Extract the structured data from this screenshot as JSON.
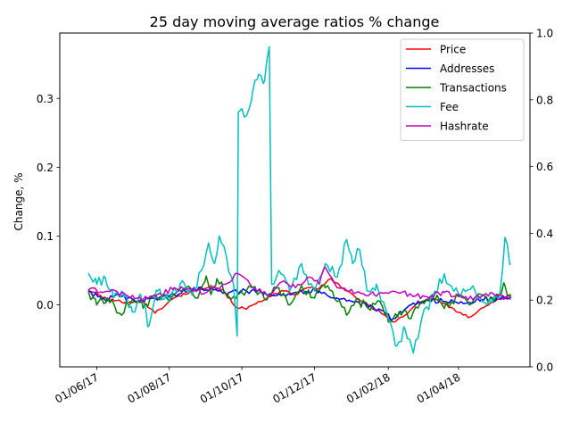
{
  "chart_data": {
    "type": "line",
    "title": "25 day moving average ratios % change",
    "xlabel": "",
    "ylabel": "Change, %",
    "x_range": [
      "2017-05-01",
      "2018-05-31"
    ],
    "ylim": [
      -0.09,
      0.395
    ],
    "y_ticks": [
      0.0,
      0.1,
      0.2,
      0.3
    ],
    "y_tick_labels": [
      "0.0",
      "0.1",
      "0.2",
      "0.3"
    ],
    "y2lim": [
      0.0,
      1.0
    ],
    "y2_ticks": [
      0.0,
      0.2,
      0.4,
      0.6,
      0.8,
      1.0
    ],
    "y2_tick_labels": [
      "0.0",
      "0.2",
      "0.4",
      "0.6",
      "0.8",
      "1.0"
    ],
    "x_ticks": [
      "2017-06-01",
      "2017-08-01",
      "2017-10-01",
      "2017-12-01",
      "2018-02-01",
      "2018-04-01"
    ],
    "x_tick_labels": [
      "01/06/17",
      "01/08/17",
      "01/10/17",
      "01/12/17",
      "01/02/18",
      "01/04/18"
    ],
    "grid": false,
    "legend_position": "top-right",
    "series": [
      {
        "name": "Price",
        "color": "#ff0000",
        "points": [
          [
            "2017-05-25",
            0.022
          ],
          [
            "2017-06-10",
            0.008
          ],
          [
            "2017-06-25",
            0.004
          ],
          [
            "2017-07-10",
            0.005
          ],
          [
            "2017-07-20",
            -0.012
          ],
          [
            "2017-08-05",
            0.01
          ],
          [
            "2017-08-20",
            0.02
          ],
          [
            "2017-09-05",
            0.028
          ],
          [
            "2017-09-15",
            0.022
          ],
          [
            "2017-09-25",
            -0.002
          ],
          [
            "2017-10-05",
            -0.006
          ],
          [
            "2017-10-15",
            0.005
          ],
          [
            "2017-10-25",
            0.012
          ],
          [
            "2017-11-05",
            0.02
          ],
          [
            "2017-11-15",
            0.015
          ],
          [
            "2017-11-25",
            0.025
          ],
          [
            "2017-12-05",
            0.024
          ],
          [
            "2017-12-15",
            0.038
          ],
          [
            "2017-12-25",
            0.024
          ],
          [
            "2018-01-05",
            0.01
          ],
          [
            "2018-01-15",
            0.0
          ],
          [
            "2018-01-25",
            -0.01
          ],
          [
            "2018-02-05",
            -0.025
          ],
          [
            "2018-02-15",
            -0.015
          ],
          [
            "2018-02-25",
            0.002
          ],
          [
            "2018-03-10",
            0.01
          ],
          [
            "2018-03-20",
            0.002
          ],
          [
            "2018-03-30",
            -0.01
          ],
          [
            "2018-04-10",
            -0.018
          ],
          [
            "2018-04-20",
            -0.005
          ],
          [
            "2018-05-01",
            0.005
          ],
          [
            "2018-05-15",
            0.015
          ]
        ]
      },
      {
        "name": "Addresses",
        "color": "#0000ff",
        "points": [
          [
            "2017-05-25",
            0.02
          ],
          [
            "2017-06-05",
            0.008
          ],
          [
            "2017-06-20",
            0.012
          ],
          [
            "2017-07-05",
            0.005
          ],
          [
            "2017-07-20",
            0.01
          ],
          [
            "2017-08-05",
            0.015
          ],
          [
            "2017-08-20",
            0.022
          ],
          [
            "2017-09-05",
            0.025
          ],
          [
            "2017-09-20",
            0.018
          ],
          [
            "2017-10-05",
            0.02
          ],
          [
            "2017-10-20",
            0.018
          ],
          [
            "2017-11-05",
            0.015
          ],
          [
            "2017-11-20",
            0.02
          ],
          [
            "2017-12-05",
            0.02
          ],
          [
            "2017-12-20",
            0.01
          ],
          [
            "2018-01-05",
            0.005
          ],
          [
            "2018-01-20",
            -0.005
          ],
          [
            "2018-02-05",
            -0.02
          ],
          [
            "2018-02-20",
            0.0
          ],
          [
            "2018-03-05",
            0.008
          ],
          [
            "2018-03-20",
            0.005
          ],
          [
            "2018-04-05",
            0.002
          ],
          [
            "2018-04-20",
            0.008
          ],
          [
            "2018-05-10",
            0.01
          ],
          [
            "2018-05-15",
            0.012
          ]
        ]
      },
      {
        "name": "Transactions",
        "color": "#008000",
        "points": [
          [
            "2017-05-25",
            0.02
          ],
          [
            "2017-06-01",
            0.0
          ],
          [
            "2017-06-10",
            0.01
          ],
          [
            "2017-06-20",
            -0.012
          ],
          [
            "2017-07-01",
            0.008
          ],
          [
            "2017-07-10",
            -0.005
          ],
          [
            "2017-07-20",
            0.015
          ],
          [
            "2017-08-01",
            0.005
          ],
          [
            "2017-08-15",
            0.025
          ],
          [
            "2017-08-25",
            0.01
          ],
          [
            "2017-09-01",
            0.042
          ],
          [
            "2017-09-05",
            0.015
          ],
          [
            "2017-09-10",
            0.038
          ],
          [
            "2017-09-20",
            0.012
          ],
          [
            "2017-10-01",
            0.018
          ],
          [
            "2017-10-10",
            0.025
          ],
          [
            "2017-10-20",
            0.008
          ],
          [
            "2017-11-01",
            0.025
          ],
          [
            "2017-11-10",
            0.0
          ],
          [
            "2017-11-20",
            0.028
          ],
          [
            "2017-12-01",
            0.01
          ],
          [
            "2017-12-10",
            0.025
          ],
          [
            "2017-12-20",
            0.005
          ],
          [
            "2017-12-28",
            -0.015
          ],
          [
            "2018-01-05",
            0.008
          ],
          [
            "2018-01-15",
            -0.005
          ],
          [
            "2018-01-25",
            0.005
          ],
          [
            "2018-02-01",
            -0.025
          ],
          [
            "2018-02-10",
            -0.01
          ],
          [
            "2018-02-20",
            -0.02
          ],
          [
            "2018-03-01",
            0.005
          ],
          [
            "2018-03-10",
            0.015
          ],
          [
            "2018-03-20",
            -0.005
          ],
          [
            "2018-04-01",
            0.012
          ],
          [
            "2018-04-10",
            0.0
          ],
          [
            "2018-04-20",
            0.015
          ],
          [
            "2018-05-01",
            0.005
          ],
          [
            "2018-05-10",
            0.028
          ],
          [
            "2018-05-15",
            0.01
          ]
        ]
      },
      {
        "name": "Fee",
        "color": "#00bfbf",
        "points": [
          [
            "2017-05-25",
            0.046
          ],
          [
            "2017-06-01",
            0.03
          ],
          [
            "2017-06-08",
            0.04
          ],
          [
            "2017-06-15",
            0.01
          ],
          [
            "2017-06-22",
            0.02
          ],
          [
            "2017-07-01",
            -0.01
          ],
          [
            "2017-07-08",
            0.015
          ],
          [
            "2017-07-15",
            -0.03
          ],
          [
            "2017-07-22",
            0.02
          ],
          [
            "2017-08-01",
            0.005
          ],
          [
            "2017-08-10",
            0.03
          ],
          [
            "2017-08-20",
            0.015
          ],
          [
            "2017-08-28",
            0.05
          ],
          [
            "2017-09-03",
            0.09
          ],
          [
            "2017-09-08",
            0.06
          ],
          [
            "2017-09-12",
            0.1
          ],
          [
            "2017-09-18",
            0.07
          ],
          [
            "2017-09-24",
            0.03
          ],
          [
            "2017-09-27",
            -0.045
          ],
          [
            "2017-09-28",
            0.28
          ],
          [
            "2017-10-01",
            0.285
          ],
          [
            "2017-10-05",
            0.275
          ],
          [
            "2017-10-10",
            0.31
          ],
          [
            "2017-10-15",
            0.335
          ],
          [
            "2017-10-20",
            0.325
          ],
          [
            "2017-10-24",
            0.375
          ],
          [
            "2017-10-26",
            0.03
          ],
          [
            "2017-11-01",
            0.05
          ],
          [
            "2017-11-10",
            0.02
          ],
          [
            "2017-11-20",
            0.06
          ],
          [
            "2017-12-01",
            0.02
          ],
          [
            "2017-12-10",
            0.06
          ],
          [
            "2017-12-20",
            0.04
          ],
          [
            "2017-12-28",
            0.095
          ],
          [
            "2018-01-02",
            0.06
          ],
          [
            "2018-01-08",
            0.08
          ],
          [
            "2018-01-15",
            0.02
          ],
          [
            "2018-01-22",
            0.03
          ],
          [
            "2018-02-01",
            -0.02
          ],
          [
            "2018-02-08",
            -0.06
          ],
          [
            "2018-02-15",
            -0.035
          ],
          [
            "2018-02-22",
            -0.07
          ],
          [
            "2018-03-01",
            -0.02
          ],
          [
            "2018-03-10",
            0.01
          ],
          [
            "2018-03-20",
            0.045
          ],
          [
            "2018-04-01",
            0.015
          ],
          [
            "2018-04-15",
            0.02
          ],
          [
            "2018-04-25",
            0.0
          ],
          [
            "2018-05-06",
            0.02
          ],
          [
            "2018-05-10",
            0.098
          ],
          [
            "2018-05-15",
            0.06
          ]
        ]
      },
      {
        "name": "Hashrate",
        "color": "#bf00bf",
        "points": [
          [
            "2017-05-25",
            0.022
          ],
          [
            "2017-06-10",
            0.02
          ],
          [
            "2017-06-25",
            0.015
          ],
          [
            "2017-07-10",
            0.008
          ],
          [
            "2017-07-25",
            0.015
          ],
          [
            "2017-08-05",
            0.025
          ],
          [
            "2017-08-20",
            0.02
          ],
          [
            "2017-09-01",
            0.018
          ],
          [
            "2017-09-15",
            0.03
          ],
          [
            "2017-09-28",
            0.045
          ],
          [
            "2017-10-10",
            0.025
          ],
          [
            "2017-10-25",
            0.015
          ],
          [
            "2017-11-05",
            0.035
          ],
          [
            "2017-11-15",
            0.025
          ],
          [
            "2017-11-25",
            0.04
          ],
          [
            "2017-12-05",
            0.03
          ],
          [
            "2017-12-10",
            0.055
          ],
          [
            "2017-12-20",
            0.025
          ],
          [
            "2018-01-05",
            0.018
          ],
          [
            "2018-01-20",
            0.015
          ],
          [
            "2018-02-05",
            0.02
          ],
          [
            "2018-02-20",
            0.015
          ],
          [
            "2018-03-05",
            0.012
          ],
          [
            "2018-03-20",
            0.018
          ],
          [
            "2018-04-05",
            0.01
          ],
          [
            "2018-04-20",
            0.012
          ],
          [
            "2018-05-01",
            0.015
          ],
          [
            "2018-05-15",
            0.008
          ]
        ]
      }
    ]
  }
}
